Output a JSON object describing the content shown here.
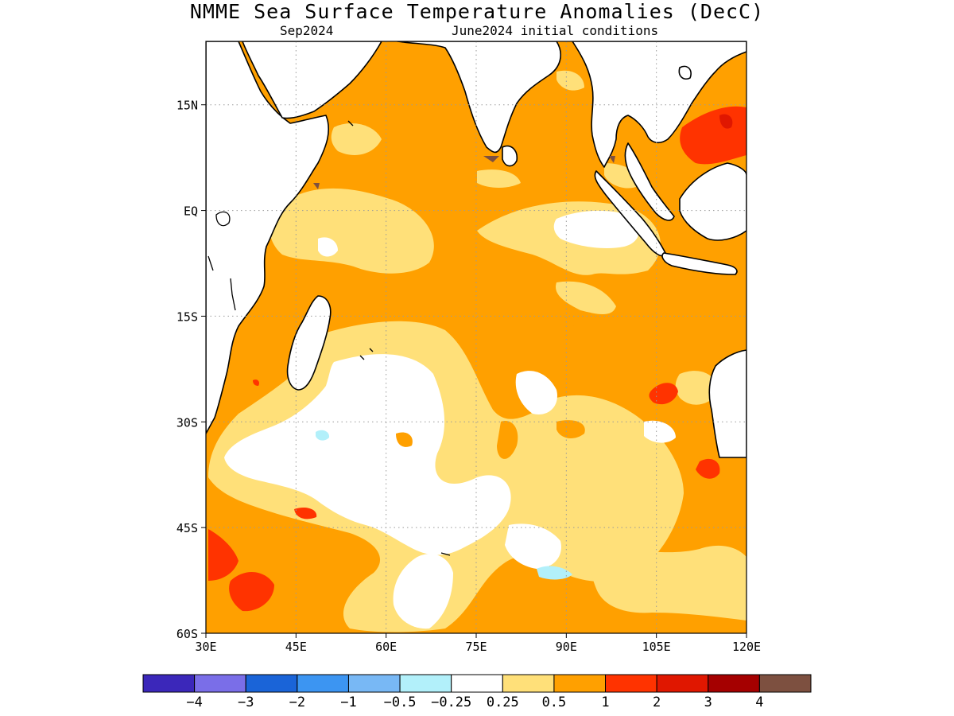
{
  "title": "NMME Sea Surface Temperature Anomalies (DecC)",
  "subtitle_left": "Sep2024",
  "subtitle_right": "June2024 initial conditions",
  "map": {
    "region": "Indian Ocean",
    "lon_range": [
      30,
      120
    ],
    "lat_range": [
      -60,
      24
    ],
    "grid": true,
    "lon_ticks": [
      {
        "value": 30,
        "label": "30E"
      },
      {
        "value": 45,
        "label": "45E"
      },
      {
        "value": 60,
        "label": "60E"
      },
      {
        "value": 75,
        "label": "75E"
      },
      {
        "value": 90,
        "label": "90E"
      },
      {
        "value": 105,
        "label": "105E"
      },
      {
        "value": 120,
        "label": "120E"
      }
    ],
    "lat_ticks": [
      {
        "value": 15,
        "label": "15N"
      },
      {
        "value": 0,
        "label": "EQ"
      },
      {
        "value": -15,
        "label": "15S"
      },
      {
        "value": -30,
        "label": "30S"
      },
      {
        "value": -45,
        "label": "45S"
      },
      {
        "value": -60,
        "label": "60S"
      }
    ],
    "ocean_default_color": "#ffa000"
  },
  "colorbar": {
    "colors": [
      "#3b27ba",
      "#7a6ee8",
      "#1a64d8",
      "#3c95f2",
      "#78b8f5",
      "#b2f0fa",
      "#ffffff",
      "#ffe079",
      "#ffa000",
      "#ff3300",
      "#e01700",
      "#a50000",
      "#7d5040"
    ],
    "labels": [
      "−4",
      "−3",
      "−2",
      "−1",
      "−0.5",
      "−0.25",
      "0.25",
      "0.5",
      "1",
      "2",
      "3",
      "4"
    ]
  }
}
